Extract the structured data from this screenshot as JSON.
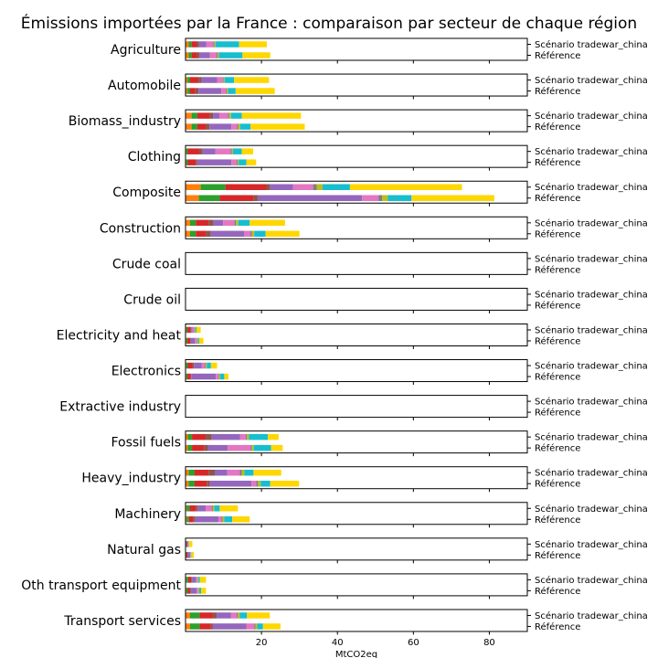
{
  "chart_data": {
    "type": "bar",
    "orientation": "horizontal",
    "stacked": true,
    "title": "Émissions importées par la France : comparaison par secteur de chaque région",
    "xlabel": "MtCO2eq",
    "xlim": [
      0,
      90
    ],
    "xticks": [
      20,
      40,
      60,
      80
    ],
    "row_labels": [
      "Scénario tradewar_china",
      "Référence"
    ],
    "region_colors": [
      "#ff7f0e",
      "#2ca02c",
      "#d62728",
      "#8c564b",
      "#9467bd",
      "#e377c2",
      "#7f7f7f",
      "#bcbd22",
      "#17becf",
      "#ffd700"
    ],
    "sectors": [
      {
        "name": "Agriculture",
        "tradewar": [
          0.8,
          0.8,
          1.4,
          0.5,
          2.0,
          1.8,
          0.3,
          0.3,
          6.2,
          7.3
        ],
        "reference": [
          0.8,
          0.8,
          1.4,
          0.7,
          2.7,
          1.8,
          0.3,
          0.3,
          6.2,
          7.3
        ]
      },
      {
        "name": "Automobile",
        "tradewar": [
          0.5,
          0.7,
          2.2,
          0.8,
          4.1,
          1.5,
          0.2,
          0.3,
          2.5,
          9.2
        ],
        "reference": [
          0.5,
          0.7,
          1.4,
          0.8,
          6.0,
          1.3,
          0.2,
          0.3,
          2.0,
          10.3
        ]
      },
      {
        "name": "Biomass_industry",
        "tradewar": [
          1.6,
          1.5,
          3.3,
          0.9,
          1.6,
          2.3,
          0.3,
          0.5,
          2.8,
          15.6
        ],
        "reference": [
          1.6,
          1.5,
          2.3,
          0.9,
          5.8,
          1.5,
          0.3,
          0.5,
          2.7,
          14.3
        ]
      },
      {
        "name": "Clothing",
        "tradewar": [
          0.2,
          0.4,
          3.0,
          0.9,
          3.4,
          4.0,
          0.3,
          0.3,
          2.3,
          3.0
        ],
        "reference": [
          0.2,
          0.4,
          2.1,
          0.4,
          9.0,
          1.3,
          0.3,
          0.3,
          2.0,
          2.6
        ]
      },
      {
        "name": "Composite",
        "tradewar": [
          4.0,
          6.5,
          10.8,
          1.0,
          6.0,
          5.3,
          1.0,
          1.5,
          7.2,
          29.5
        ],
        "reference": [
          3.5,
          5.5,
          9.0,
          1.0,
          27.5,
          4.3,
          1.0,
          1.5,
          6.2,
          21.8
        ]
      },
      {
        "name": "Construction",
        "tradewar": [
          1.2,
          1.5,
          3.5,
          1.2,
          2.5,
          3.0,
          0.4,
          0.6,
          3.0,
          9.3
        ],
        "reference": [
          1.2,
          1.5,
          2.7,
          1.2,
          8.8,
          1.7,
          0.4,
          0.6,
          3.0,
          8.9
        ]
      },
      {
        "name": "Crude coal",
        "tradewar": [
          0,
          0,
          0,
          0,
          0,
          0,
          0,
          0,
          0,
          0
        ],
        "reference": [
          0,
          0,
          0,
          0,
          0,
          0,
          0,
          0,
          0,
          0
        ]
      },
      {
        "name": "Crude oil",
        "tradewar": [
          0,
          0,
          0,
          0,
          0,
          0,
          0,
          0,
          0,
          0
        ],
        "reference": [
          0,
          0,
          0,
          0,
          0,
          0,
          0,
          0,
          0,
          0
        ]
      },
      {
        "name": "Electricity and heat",
        "tradewar": [
          0.2,
          0.3,
          0.8,
          0.2,
          0.3,
          0.5,
          0.1,
          0.2,
          0.3,
          1.1
        ],
        "reference": [
          0.2,
          0.3,
          0.7,
          0.2,
          1.1,
          0.5,
          0.1,
          0.2,
          0.3,
          1.1
        ]
      },
      {
        "name": "Electronics",
        "tradewar": [
          0.2,
          0.4,
          1.3,
          0.3,
          2.1,
          0.8,
          0.2,
          0.3,
          1.1,
          1.6
        ],
        "reference": [
          0.2,
          0.3,
          0.9,
          0.1,
          6.5,
          0.6,
          0.2,
          0.3,
          1.1,
          1.1
        ]
      },
      {
        "name": "Extractive industry",
        "tradewar": [
          0,
          0,
          0,
          0,
          0,
          0,
          0,
          0,
          0,
          0
        ],
        "reference": [
          0,
          0,
          0,
          0,
          0,
          0,
          0,
          0,
          0,
          0
        ]
      },
      {
        "name": "Fossil fuels",
        "tradewar": [
          0.6,
          1.1,
          3.6,
          1.6,
          7.5,
          1.5,
          0.3,
          0.5,
          5.0,
          2.8
        ],
        "reference": [
          0.6,
          1.1,
          3.2,
          1.0,
          5.2,
          6.1,
          0.3,
          0.5,
          4.5,
          3.1
        ]
      },
      {
        "name": "Heavy_industry",
        "tradewar": [
          0.8,
          1.6,
          3.8,
          1.5,
          3.3,
          3.3,
          0.5,
          0.7,
          2.4,
          7.3
        ],
        "reference": [
          0.8,
          1.6,
          3.2,
          0.8,
          11.0,
          1.2,
          0.5,
          0.7,
          2.5,
          7.6
        ]
      },
      {
        "name": "Machinery",
        "tradewar": [
          0.3,
          0.8,
          1.6,
          0.5,
          2.1,
          1.6,
          0.3,
          0.4,
          1.4,
          4.8
        ],
        "reference": [
          0.3,
          0.6,
          1.2,
          0.4,
          6.2,
          0.8,
          0.3,
          0.4,
          2.1,
          4.6
        ]
      },
      {
        "name": "Natural gas",
        "tradewar": [
          0.1,
          0.1,
          0.2,
          0.1,
          0.2,
          0.1,
          0,
          0.1,
          0.1,
          0.8
        ],
        "reference": [
          0.1,
          0.1,
          0.3,
          0.1,
          0.6,
          0.2,
          0,
          0.1,
          0.1,
          0.6
        ]
      },
      {
        "name": "Oth transport equipment",
        "tradewar": [
          0.2,
          0.5,
          0.8,
          0.2,
          1.1,
          0.3,
          0.1,
          0.2,
          0.4,
          1.6
        ],
        "reference": [
          0.2,
          0.4,
          0.6,
          0.2,
          1.5,
          0.4,
          0.1,
          0.2,
          0.5,
          1.3
        ]
      },
      {
        "name": "Transport services",
        "tradewar": [
          1.2,
          2.5,
          3.5,
          1.0,
          3.8,
          1.5,
          0.3,
          0.5,
          1.9,
          6.0
        ],
        "reference": [
          1.2,
          2.5,
          3.0,
          0.5,
          8.8,
          2.1,
          0.3,
          0.5,
          1.5,
          4.6
        ]
      }
    ]
  }
}
